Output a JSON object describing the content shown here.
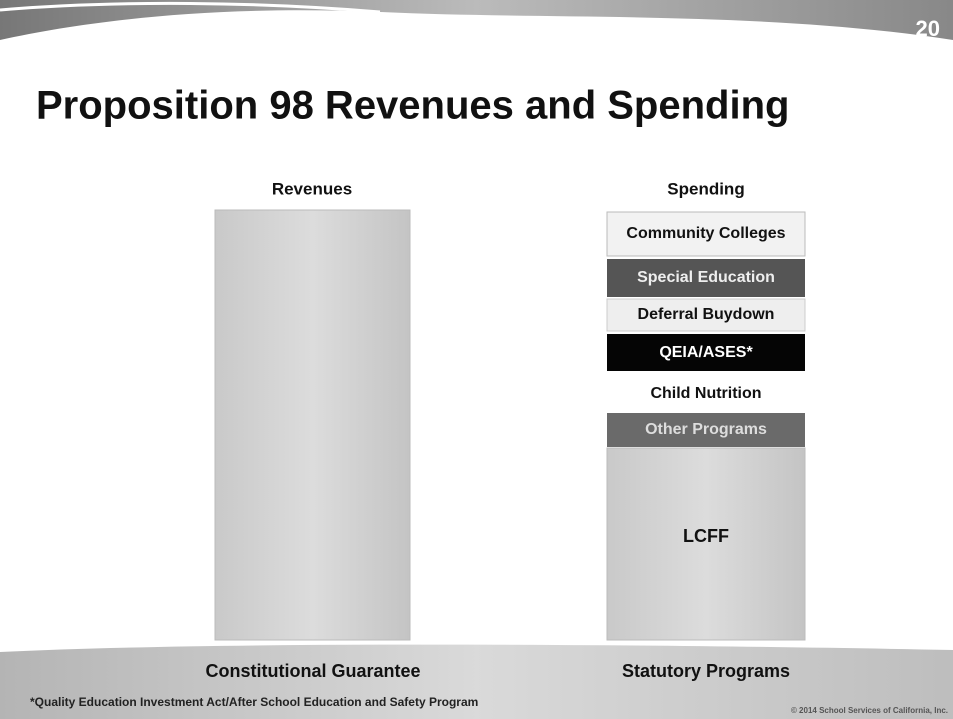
{
  "page_number": "20",
  "title": "Proposition 98 Revenues and Spending",
  "columns": [
    {
      "heading": "Revenues",
      "footer": "Constitutional Guarantee"
    },
    {
      "heading": "Spending",
      "footer": "Statutory Programs",
      "segments": [
        "Community Colleges",
        "Special Education",
        "Deferral Buydown",
        "QEIA/ASES*",
        "Child Nutrition",
        "Other Programs",
        "LCFF"
      ]
    }
  ],
  "footnote": "*Quality Education Investment Act/After School Education and Safety Program",
  "copyright": "© 2014 School Services of California, Inc."
}
